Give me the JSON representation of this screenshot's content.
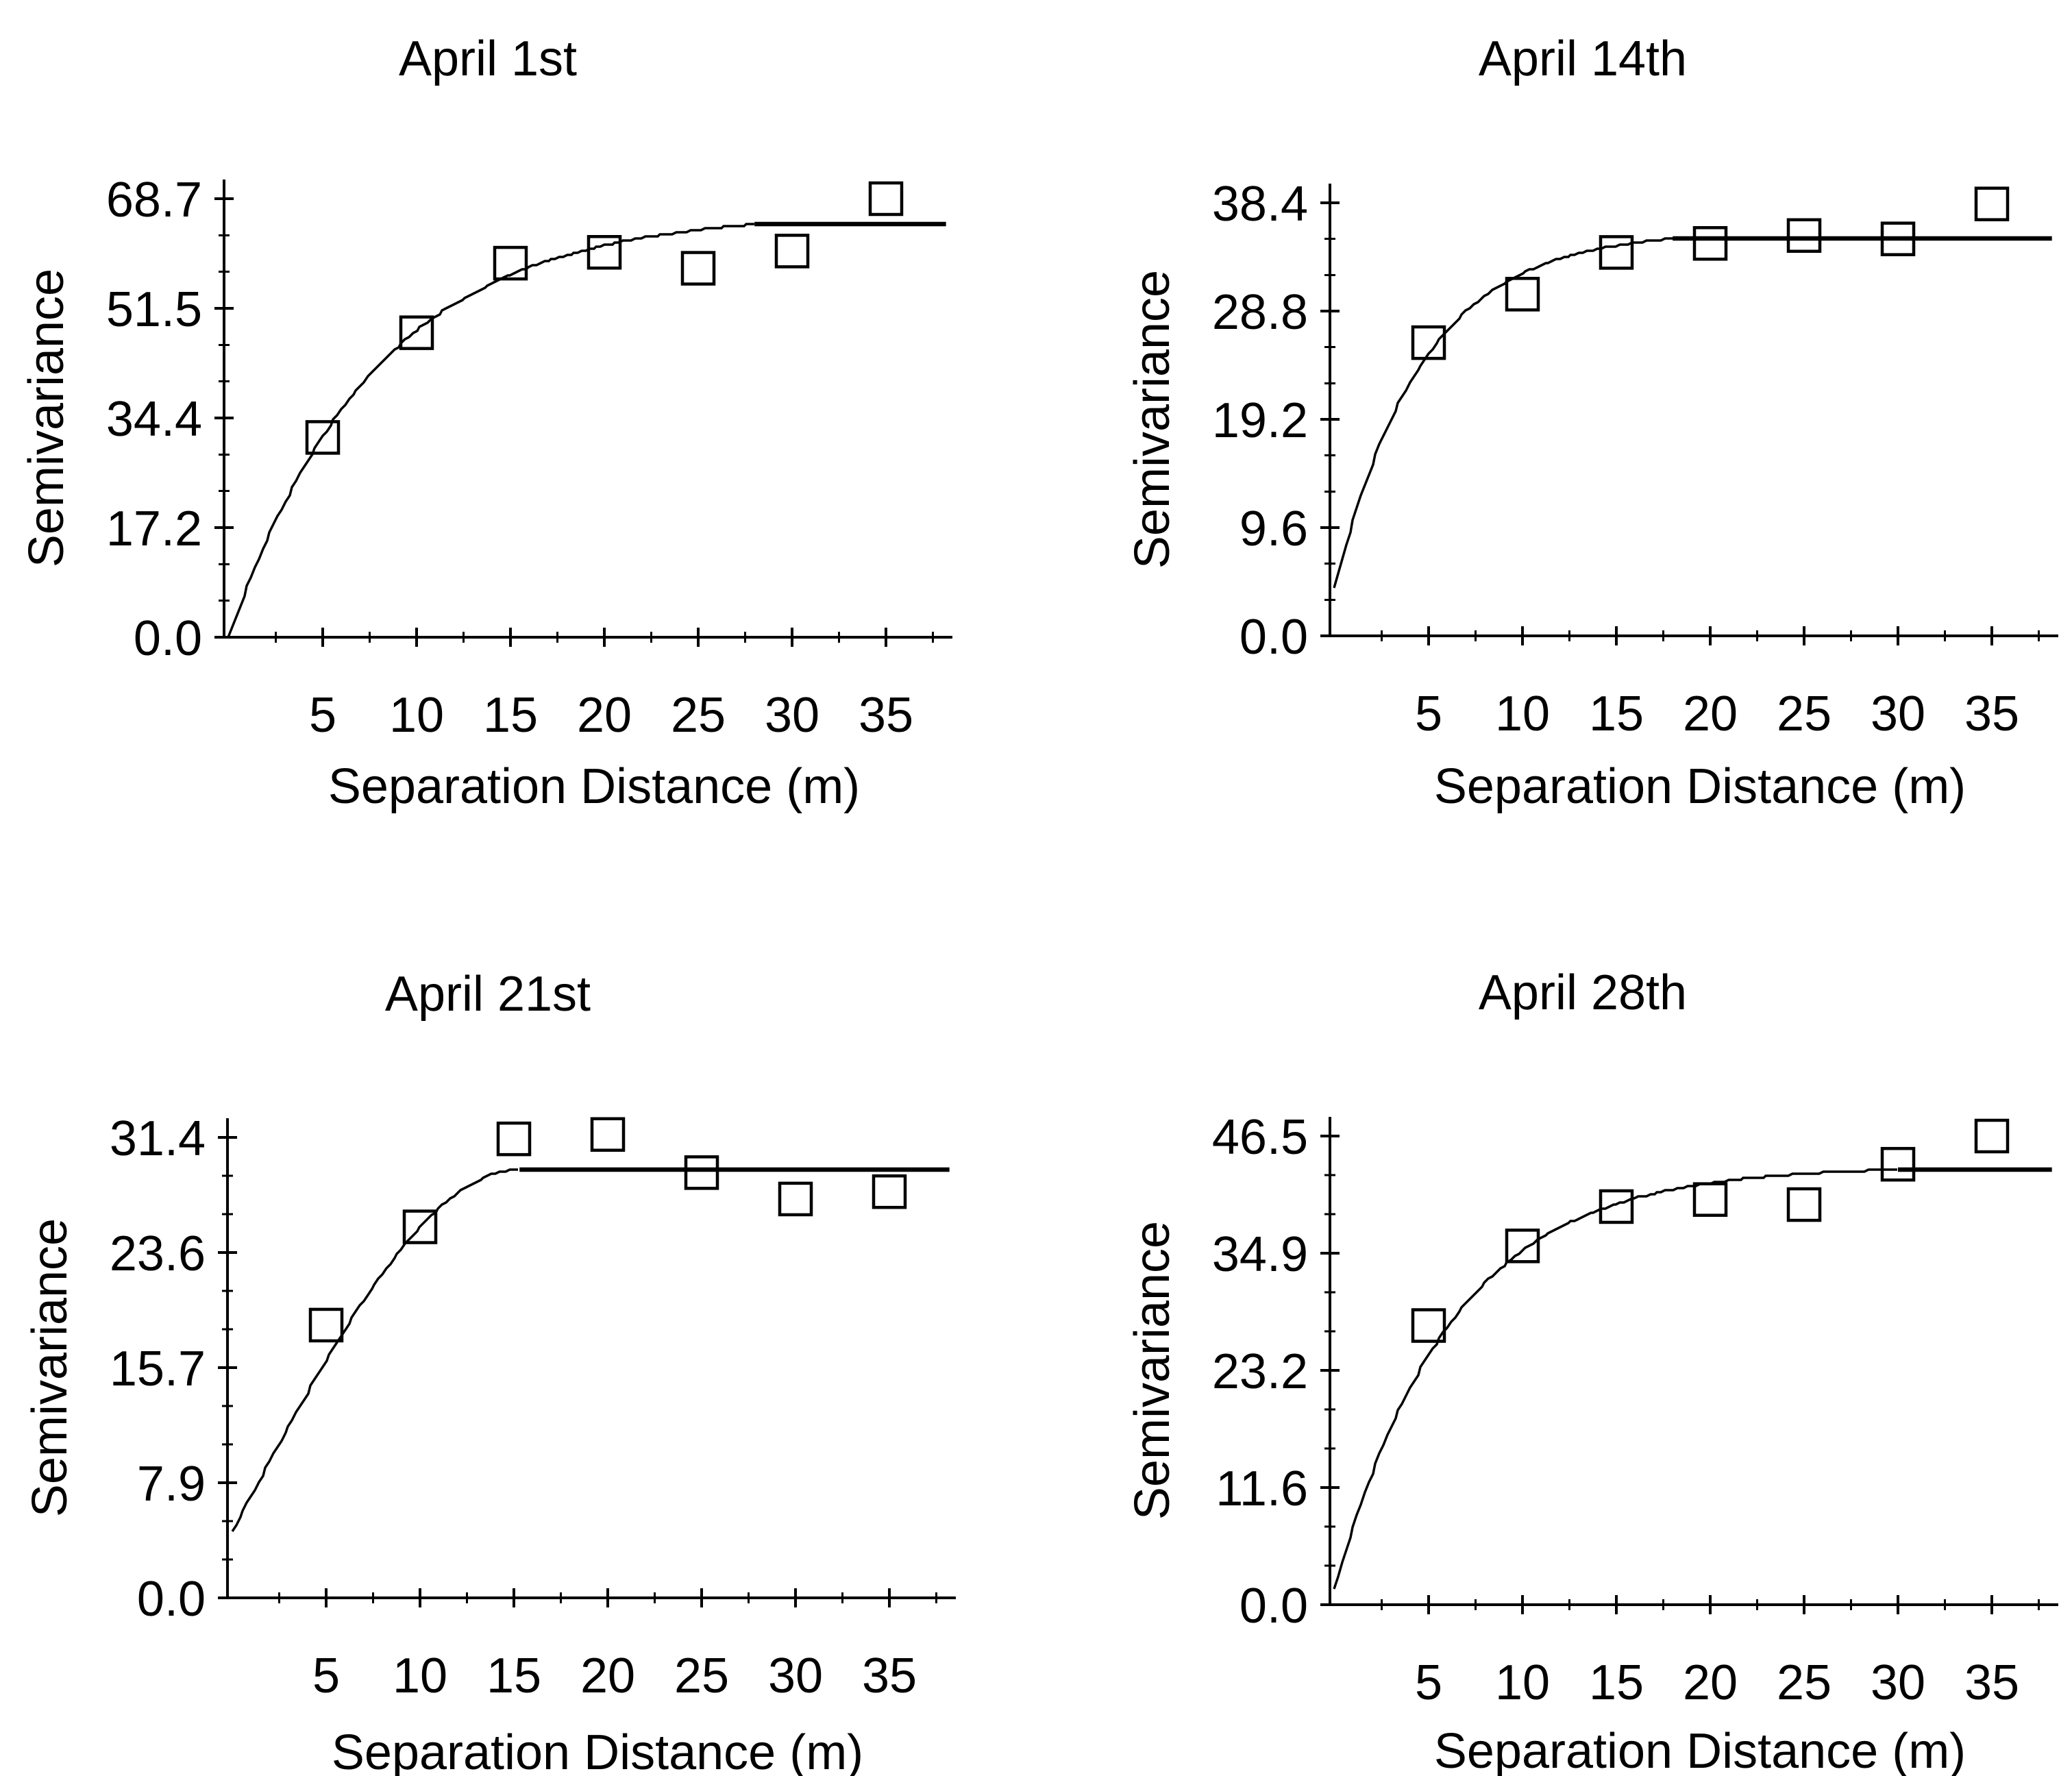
{
  "figure_title": "Semivariogram panels",
  "colors": {
    "ink": "#000000",
    "background": "#ffffff"
  },
  "chart_data": [
    {
      "type": "scatter",
      "title": "April 1st",
      "xlabel": "Separation Distance (m)",
      "ylabel": "Semivariance",
      "x_ticks": [
        5,
        10,
        15,
        20,
        25,
        30,
        35
      ],
      "x_minor_step": 2.5,
      "x_range": [
        0,
        38.5
      ],
      "y_ticks": [
        "0.0",
        "17.2",
        "34.4",
        "51.5",
        "68.7"
      ],
      "y_max": 68.7,
      "points": [
        [
          5,
          31.3
        ],
        [
          10,
          47.7
        ],
        [
          15,
          58.6
        ],
        [
          20,
          60.3
        ],
        [
          25,
          57.8
        ],
        [
          30,
          60.5
        ],
        [
          35,
          68.7
        ]
      ],
      "fit_curve": {
        "model": "exponential",
        "nugget": 0,
        "sill": 66.5,
        "range": 7.8,
        "flat_from": 28
      }
    },
    {
      "type": "scatter",
      "title": "April 14th",
      "xlabel": "Separation Distance (m)",
      "ylabel": "Semivariance",
      "x_ticks": [
        5,
        10,
        15,
        20,
        25,
        30,
        35
      ],
      "x_minor_step": 2.5,
      "x_range": [
        0,
        38.5
      ],
      "y_ticks": [
        "0.0",
        "9.6",
        "19.2",
        "28.8",
        "38.4"
      ],
      "y_max": 38.4,
      "points": [
        [
          5,
          26.0
        ],
        [
          10,
          30.3
        ],
        [
          15,
          34.0
        ],
        [
          20,
          34.8
        ],
        [
          25,
          35.5
        ],
        [
          30,
          35.2
        ],
        [
          35,
          38.3
        ]
      ],
      "fit_curve": {
        "model": "exponential",
        "nugget": 4.3,
        "sill": 31.6,
        "range": 4.7,
        "flat_from": 18
      }
    },
    {
      "type": "scatter",
      "title": "April 21st",
      "xlabel": "Separation Distance (m)",
      "ylabel": "Semivariance",
      "x_ticks": [
        5,
        10,
        15,
        20,
        25,
        30,
        35
      ],
      "x_minor_step": 2.5,
      "x_range": [
        0,
        38.5
      ],
      "y_ticks": [
        "0.0",
        "7.9",
        "15.7",
        "23.6",
        "31.4"
      ],
      "y_max": 31.4,
      "points": [
        [
          5,
          18.6
        ],
        [
          10,
          25.3
        ],
        [
          15,
          31.3
        ],
        [
          20,
          31.6
        ],
        [
          25,
          29.0
        ],
        [
          30,
          27.2
        ],
        [
          35,
          27.7
        ]
      ],
      "fit_curve": {
        "model": "spherical",
        "nugget": 4.5,
        "sill": 24.7,
        "range": 15.3,
        "flat_from": 15.3
      }
    },
    {
      "type": "scatter",
      "title": "April 28th",
      "xlabel": "Separation Distance (m)",
      "ylabel": "Semivariance",
      "x_ticks": [
        5,
        10,
        15,
        20,
        25,
        30,
        35
      ],
      "x_minor_step": 2.5,
      "x_range": [
        0,
        38.5
      ],
      "y_ticks": [
        "0.0",
        "11.6",
        "23.2",
        "34.9",
        "46.5"
      ],
      "y_max": 46.5,
      "points": [
        [
          5,
          27.7
        ],
        [
          10,
          35.6
        ],
        [
          15,
          39.5
        ],
        [
          20,
          40.2
        ],
        [
          25,
          39.7
        ],
        [
          30,
          43.7
        ],
        [
          35,
          46.5
        ]
      ],
      "fit_curve": {
        "model": "exponential",
        "nugget": 1.5,
        "sill": 42.0,
        "range": 6.2,
        "flat_from": 30
      }
    }
  ]
}
